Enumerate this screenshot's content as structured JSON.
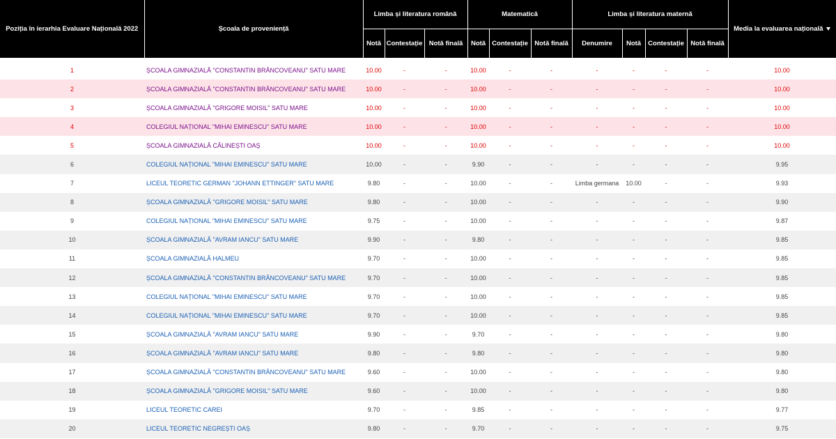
{
  "header": {
    "position": "Poziția în ierarhia Evaluare Națională 2022",
    "school": "Școala de proveniență",
    "groups": [
      "Limba și literatura română",
      "Matematică",
      "Limba și literatura maternă"
    ],
    "average": "Media la evaluarea națională",
    "subheaders": [
      "Notă",
      "Contestație",
      "Notă finală",
      "Notă",
      "Contestație",
      "Notă finală",
      "Denumire",
      "Notă",
      "Contestație",
      "Notă finală"
    ]
  },
  "table": {
    "rows": [
      [
        "1",
        "ȘCOALA GIMNAZIALĂ \"CONSTANTIN BRÂNCOVEANU\" SATU MARE",
        "10.00",
        "-",
        "-",
        "10.00",
        "-",
        "-",
        "-",
        "-",
        "-",
        "-",
        "10.00"
      ],
      [
        "2",
        "ȘCOALA GIMNAZIALĂ \"CONSTANTIN BRÂNCOVEANU\" SATU MARE",
        "10.00",
        "-",
        "-",
        "10.00",
        "-",
        "-",
        "-",
        "-",
        "-",
        "-",
        "10.00"
      ],
      [
        "3",
        "ȘCOALA GIMNAZIALĂ \"GRIGORE MOISIL\" SATU MARE",
        "10.00",
        "-",
        "-",
        "10.00",
        "-",
        "-",
        "-",
        "-",
        "-",
        "-",
        "10.00"
      ],
      [
        "4",
        "COLEGIUL NAȚIONAL \"MIHAI EMINESCU\" SATU MARE",
        "10.00",
        "-",
        "-",
        "10.00",
        "-",
        "-",
        "-",
        "-",
        "-",
        "-",
        "10.00"
      ],
      [
        "5",
        "ȘCOALA GIMNAZIALĂ CĂLINEȘTI OAȘ",
        "10.00",
        "-",
        "-",
        "10.00",
        "-",
        "-",
        "-",
        "-",
        "-",
        "-",
        "10.00"
      ],
      [
        "6",
        "COLEGIUL NAȚIONAL \"MIHAI EMINESCU\" SATU MARE",
        "10.00",
        "-",
        "-",
        "9.90",
        "-",
        "-",
        "-",
        "-",
        "-",
        "-",
        "9.95"
      ],
      [
        "7",
        "LICEUL TEORETIC GERMAN \"JOHANN ETTINGER\" SATU MARE",
        "9.80",
        "-",
        "-",
        "10.00",
        "-",
        "-",
        "Limba germana",
        "10.00",
        "-",
        "-",
        "9.93"
      ],
      [
        "8",
        "ȘCOALA GIMNAZIALĂ \"GRIGORE MOISIL\" SATU MARE",
        "9.80",
        "-",
        "-",
        "10.00",
        "-",
        "-",
        "-",
        "-",
        "-",
        "-",
        "9.90"
      ],
      [
        "9",
        "COLEGIUL NAȚIONAL \"MIHAI EMINESCU\" SATU MARE",
        "9.75",
        "-",
        "-",
        "10.00",
        "-",
        "-",
        "-",
        "-",
        "-",
        "-",
        "9.87"
      ],
      [
        "10",
        "ȘCOALA GIMNAZIALĂ \"AVRAM IANCU\" SATU MARE",
        "9.90",
        "-",
        "-",
        "9.80",
        "-",
        "-",
        "-",
        "-",
        "-",
        "-",
        "9.85"
      ],
      [
        "11",
        "ȘCOALA GIMNAZIALĂ HALMEU",
        "9.70",
        "-",
        "-",
        "10.00",
        "-",
        "-",
        "-",
        "-",
        "-",
        "-",
        "9.85"
      ],
      [
        "12",
        "ȘCOALA GIMNAZIALĂ \"CONSTANTIN BRÂNCOVEANU\" SATU MARE",
        "9.70",
        "-",
        "-",
        "10.00",
        "-",
        "-",
        "-",
        "-",
        "-",
        "-",
        "9.85"
      ],
      [
        "13",
        "COLEGIUL NAȚIONAL \"MIHAI EMINESCU\" SATU MARE",
        "9.70",
        "-",
        "-",
        "10.00",
        "-",
        "-",
        "-",
        "-",
        "-",
        "-",
        "9.85"
      ],
      [
        "14",
        "COLEGIUL NAȚIONAL \"MIHAI EMINESCU\" SATU MARE",
        "9.70",
        "-",
        "-",
        "10.00",
        "-",
        "-",
        "-",
        "-",
        "-",
        "-",
        "9.85"
      ],
      [
        "15",
        "ȘCOALA GIMNAZIALĂ \"AVRAM IANCU\" SATU MARE",
        "9.90",
        "-",
        "-",
        "9.70",
        "-",
        "-",
        "-",
        "-",
        "-",
        "-",
        "9.80"
      ],
      [
        "16",
        "ȘCOALA GIMNAZIALĂ \"AVRAM IANCU\" SATU MARE",
        "9.80",
        "-",
        "-",
        "9.80",
        "-",
        "-",
        "-",
        "-",
        "-",
        "-",
        "9.80"
      ],
      [
        "17",
        "ȘCOALA GIMNAZIALĂ \"CONSTANTIN BRÂNCOVEANU\" SATU MARE",
        "9.60",
        "-",
        "-",
        "10.00",
        "-",
        "-",
        "-",
        "-",
        "-",
        "-",
        "9.80"
      ],
      [
        "18",
        "ȘCOALA GIMNAZIALĂ \"GRIGORE MOISIL\" SATU MARE",
        "9.60",
        "-",
        "-",
        "10.00",
        "-",
        "-",
        "-",
        "-",
        "-",
        "-",
        "9.80"
      ],
      [
        "19",
        "LICEUL TEORETIC CAREI",
        "9.70",
        "-",
        "-",
        "9.85",
        "-",
        "-",
        "-",
        "-",
        "-",
        "-",
        "9.77"
      ],
      [
        "20",
        "LICEUL TEORETIC NEGREȘTI OAȘ",
        "9.80",
        "-",
        "-",
        "9.70",
        "-",
        "-",
        "-",
        "-",
        "-",
        "-",
        "9.75"
      ]
    ]
  }
}
